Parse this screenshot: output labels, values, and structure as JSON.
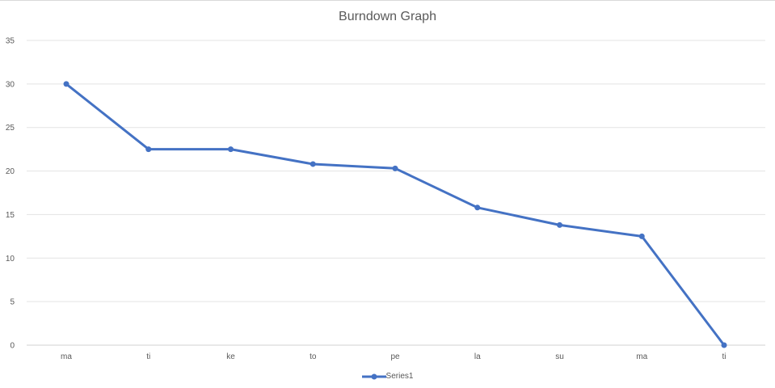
{
  "chart_data": {
    "type": "line",
    "title": "Burndown Graph",
    "xlabel": "",
    "ylabel": "",
    "categories": [
      "ma",
      "ti",
      "ke",
      "to",
      "pe",
      "la",
      "su",
      "ma",
      "ti"
    ],
    "series": [
      {
        "name": "Series1",
        "values": [
          30,
          22.5,
          22.5,
          20.8,
          20.3,
          15.8,
          13.8,
          12.5,
          0
        ],
        "color": "#4472c4",
        "markers": true
      }
    ],
    "ylim": [
      0,
      35
    ],
    "yticks": [
      0,
      5,
      10,
      15,
      20,
      25,
      30,
      35
    ],
    "grid": "horizontal",
    "legend": "bottom"
  }
}
